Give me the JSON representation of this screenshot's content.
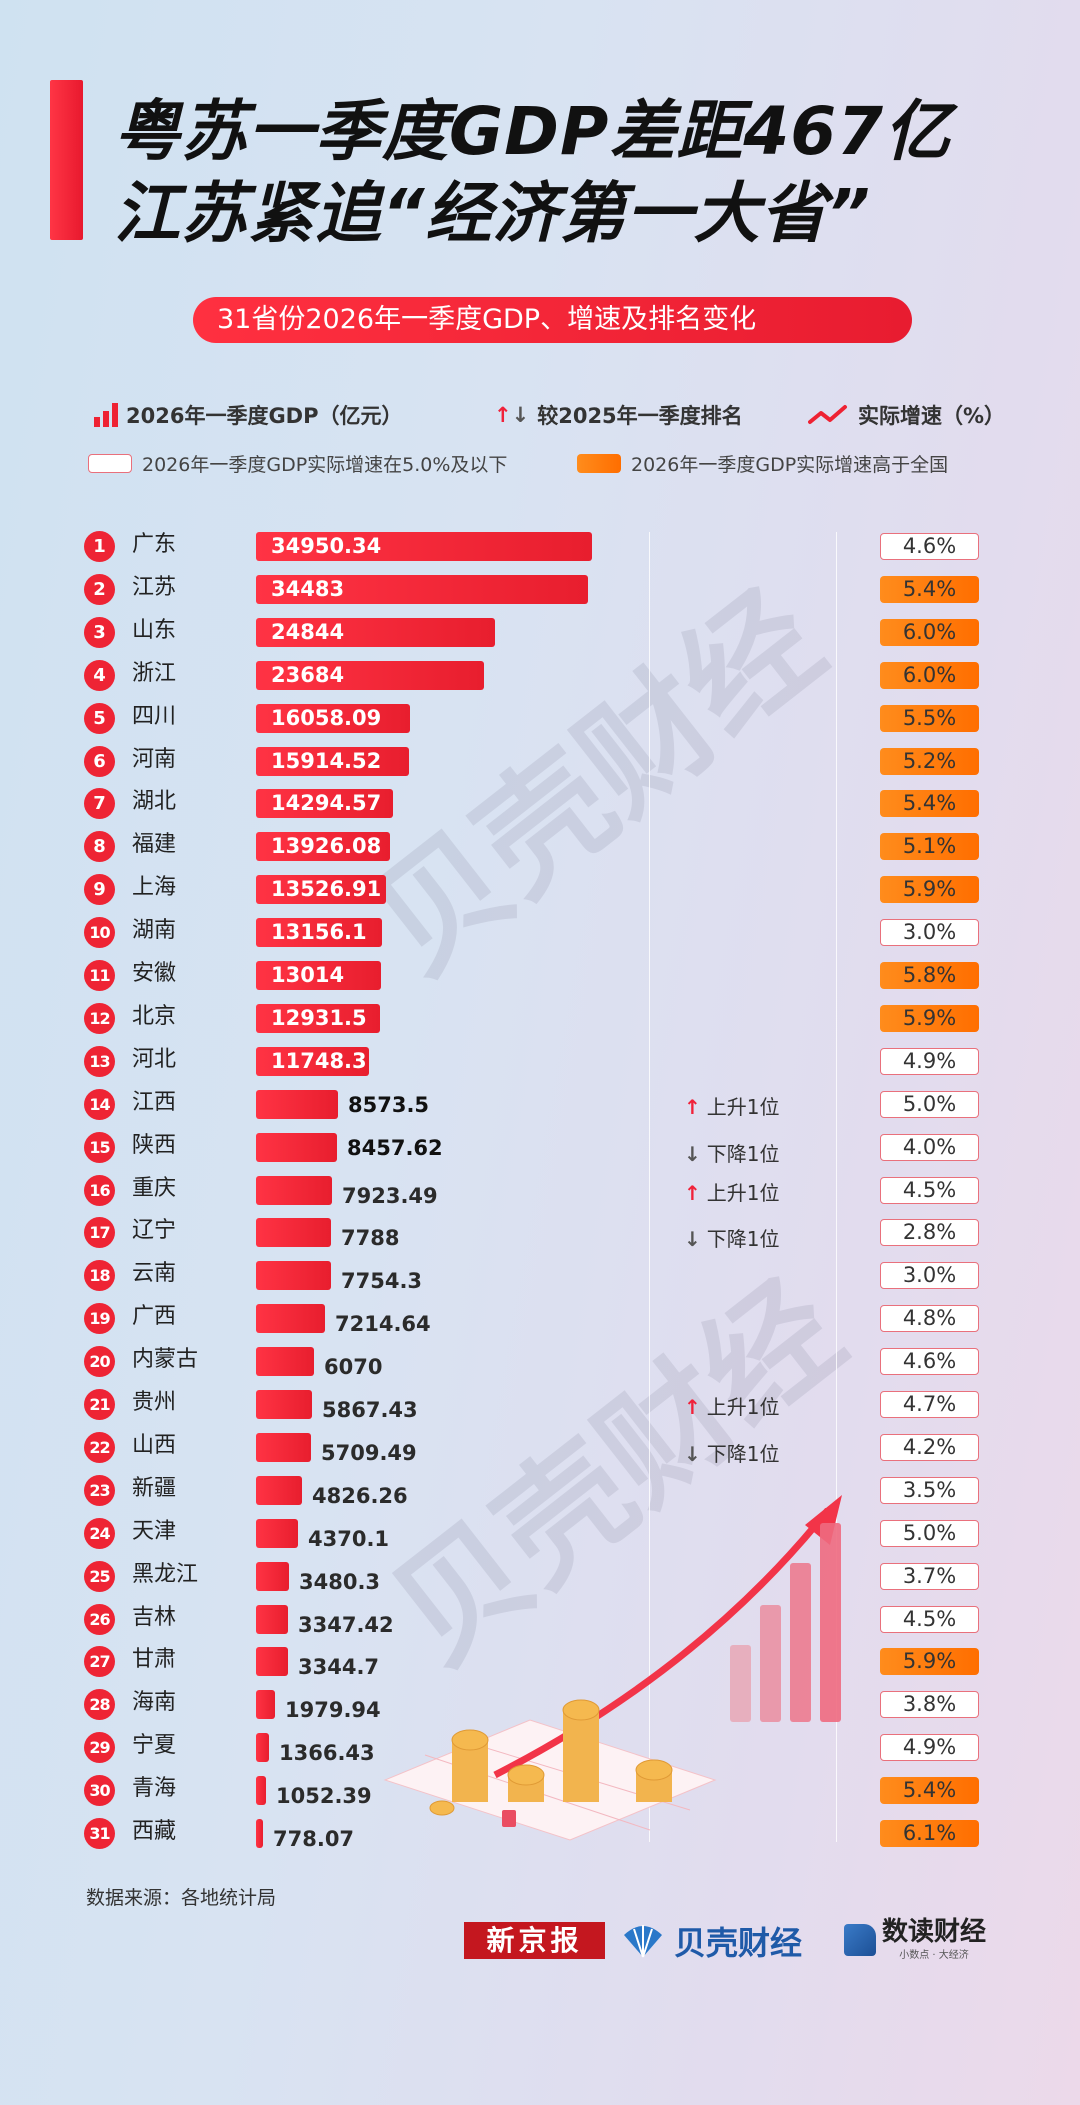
{
  "header": {
    "title_line1": "粤苏一季度GDP差距467亿",
    "title_line2": "江苏紧追“经济第一大省”",
    "subtitle": "31省份2026年一季度GDP、增速及排名变化"
  },
  "legend": {
    "gdp_label": "2026年一季度GDP（亿元）",
    "rank_label": "较2025年一季度排名",
    "growth_label": "实际增速（%）",
    "low_label": "2026年一季度GDP实际增速在5.0%及以下",
    "high_label": "2026年一季度GDP实际增速高于全国",
    "arrow_up": "↑",
    "arrow_down": "↓",
    "colors": {
      "bar": "#ee2233",
      "high": "#ff7a10",
      "low_border": "#e9707c",
      "up_arrow": "#f0223a",
      "down_arrow": "#555555"
    }
  },
  "watermark": {
    "text": "贝壳财经"
  },
  "rows": [
    {
      "rank": "1",
      "province": "广东",
      "gdp": "34950.34",
      "growth": "4.6%",
      "level": "low",
      "change": ""
    },
    {
      "rank": "2",
      "province": "江苏",
      "gdp": "34483",
      "growth": "5.4%",
      "level": "high",
      "change": ""
    },
    {
      "rank": "3",
      "province": "山东",
      "gdp": "24844",
      "growth": "6.0%",
      "level": "high",
      "change": ""
    },
    {
      "rank": "4",
      "province": "浙江",
      "gdp": "23684",
      "growth": "6.0%",
      "level": "high",
      "change": ""
    },
    {
      "rank": "5",
      "province": "四川",
      "gdp": "16058.09",
      "growth": "5.5%",
      "level": "high",
      "change": ""
    },
    {
      "rank": "6",
      "province": "河南",
      "gdp": "15914.52",
      "growth": "5.2%",
      "level": "high",
      "change": ""
    },
    {
      "rank": "7",
      "province": "湖北",
      "gdp": "14294.57",
      "growth": "5.4%",
      "level": "high",
      "change": ""
    },
    {
      "rank": "8",
      "province": "福建",
      "gdp": "13926.08",
      "growth": "5.1%",
      "level": "high",
      "change": ""
    },
    {
      "rank": "9",
      "province": "上海",
      "gdp": "13526.91",
      "growth": "5.9%",
      "level": "high",
      "change": ""
    },
    {
      "rank": "10",
      "province": "湖南",
      "gdp": "13156.1",
      "growth": "3.0%",
      "level": "low",
      "change": ""
    },
    {
      "rank": "11",
      "province": "安徽",
      "gdp": "13014",
      "growth": "5.8%",
      "level": "high",
      "change": ""
    },
    {
      "rank": "12",
      "province": "北京",
      "gdp": "12931.5",
      "growth": "5.9%",
      "level": "high",
      "change": ""
    },
    {
      "rank": "13",
      "province": "河北",
      "gdp": "11748.3",
      "growth": "4.9%",
      "level": "low",
      "change": ""
    },
    {
      "rank": "14",
      "province": "江西",
      "gdp": "8573.5",
      "growth": "5.0%",
      "level": "low",
      "change": "上升1位",
      "dir": "up"
    },
    {
      "rank": "15",
      "province": "陕西",
      "gdp": "8457.62",
      "growth": "4.0%",
      "level": "low",
      "change": "下降1位",
      "dir": "down"
    },
    {
      "rank": "16",
      "province": "重庆",
      "gdp": "7923.49",
      "growth": "4.5%",
      "level": "low",
      "change": "上升1位",
      "dir": "up"
    },
    {
      "rank": "17",
      "province": "辽宁",
      "gdp": "7788",
      "growth": "2.8%",
      "level": "low",
      "change": "下降1位",
      "dir": "down"
    },
    {
      "rank": "18",
      "province": "云南",
      "gdp": "7754.3",
      "growth": "3.0%",
      "level": "low",
      "change": ""
    },
    {
      "rank": "19",
      "province": "广西",
      "gdp": "7214.64",
      "growth": "4.8%",
      "level": "low",
      "change": ""
    },
    {
      "rank": "20",
      "province": "内蒙古",
      "gdp": "6070",
      "growth": "4.6%",
      "level": "low",
      "change": ""
    },
    {
      "rank": "21",
      "province": "贵州",
      "gdp": "5867.43",
      "growth": "4.7%",
      "level": "low",
      "change": "上升1位",
      "dir": "up"
    },
    {
      "rank": "22",
      "province": "山西",
      "gdp": "5709.49",
      "growth": "4.2%",
      "level": "low",
      "change": "下降1位",
      "dir": "down"
    },
    {
      "rank": "23",
      "province": "新疆",
      "gdp": "4826.26",
      "growth": "3.5%",
      "level": "low",
      "change": ""
    },
    {
      "rank": "24",
      "province": "天津",
      "gdp": "4370.1",
      "growth": "5.0%",
      "level": "low",
      "change": ""
    },
    {
      "rank": "25",
      "province": "黑龙江",
      "gdp": "3480.3",
      "growth": "3.7%",
      "level": "low",
      "change": ""
    },
    {
      "rank": "26",
      "province": "吉林",
      "gdp": "3347.42",
      "growth": "4.5%",
      "level": "low",
      "change": ""
    },
    {
      "rank": "27",
      "province": "甘肃",
      "gdp": "3344.7",
      "growth": "5.9%",
      "level": "high",
      "change": ""
    },
    {
      "rank": "28",
      "province": "海南",
      "gdp": "1979.94",
      "growth": "3.8%",
      "level": "low",
      "change": ""
    },
    {
      "rank": "29",
      "province": "宁夏",
      "gdp": "1366.43",
      "growth": "4.9%",
      "level": "low",
      "change": ""
    },
    {
      "rank": "30",
      "province": "青海",
      "gdp": "1052.39",
      "growth": "5.4%",
      "level": "high",
      "change": ""
    },
    {
      "rank": "31",
      "province": "西藏",
      "gdp": "778.07",
      "growth": "6.1%",
      "level": "high",
      "change": ""
    }
  ],
  "footer": {
    "source": "数据来源：各地统计局",
    "logo1": "新京报",
    "logo2": "贝壳财经",
    "logo3": "数读财经",
    "logo3_sub": "小数点 · 大经济"
  },
  "chart_data": {
    "type": "bar",
    "orientation": "horizontal",
    "title": "31省份2026年一季度GDP、增速及排名变化",
    "headline": "粤苏一季度GDP差距467亿 江苏紧追“经济第一大省”",
    "xlabel": "2026年一季度GDP（亿元）",
    "categories": [
      "广东",
      "江苏",
      "山东",
      "浙江",
      "四川",
      "河南",
      "湖北",
      "福建",
      "上海",
      "湖南",
      "安徽",
      "北京",
      "河北",
      "江西",
      "陕西",
      "重庆",
      "辽宁",
      "云南",
      "广西",
      "内蒙古",
      "贵州",
      "山西",
      "新疆",
      "天津",
      "黑龙江",
      "吉林",
      "甘肃",
      "海南",
      "宁夏",
      "青海",
      "西藏"
    ],
    "series": [
      {
        "name": "2026年一季度GDP（亿元）",
        "values": [
          34950.34,
          34483,
          24844,
          23684,
          16058.09,
          15914.52,
          14294.57,
          13926.08,
          13526.91,
          13156.1,
          13014,
          12931.5,
          11748.3,
          8573.5,
          8457.62,
          7923.49,
          7788,
          7754.3,
          7214.64,
          6070,
          5867.43,
          5709.49,
          4826.26,
          4370.1,
          3480.3,
          3347.42,
          3344.7,
          1979.94,
          1366.43,
          1052.39,
          778.07
        ]
      },
      {
        "name": "实际增速（%）",
        "values": [
          4.6,
          5.4,
          6.0,
          6.0,
          5.5,
          5.2,
          5.4,
          5.1,
          5.9,
          3.0,
          5.8,
          5.9,
          4.9,
          5.0,
          4.0,
          4.5,
          2.8,
          3.0,
          4.8,
          4.6,
          4.7,
          4.2,
          3.5,
          5.0,
          3.7,
          4.5,
          5.9,
          3.8,
          4.9,
          5.4,
          6.1
        ]
      },
      {
        "name": "较2025年一季度排名",
        "values": [
          0,
          0,
          0,
          0,
          0,
          0,
          0,
          0,
          0,
          0,
          0,
          0,
          0,
          1,
          -1,
          1,
          -1,
          0,
          0,
          0,
          1,
          -1,
          0,
          0,
          0,
          0,
          0,
          0,
          0,
          0,
          0
        ]
      }
    ],
    "legend": [
      "2026年一季度GDP（亿元）",
      "较2025年一季度排名",
      "实际增速（%）",
      "2026年一季度GDP实际增速在5.0%及以下",
      "2026年一季度GDP实际增速高于全国"
    ],
    "source": "数据来源：各地统计局"
  }
}
